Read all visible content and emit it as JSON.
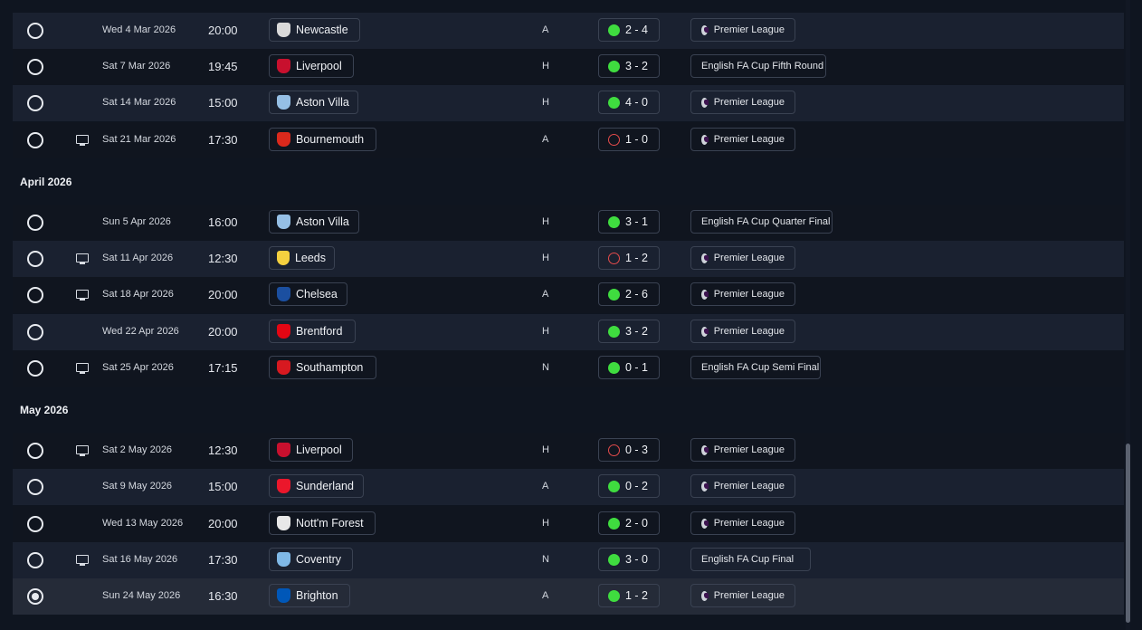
{
  "months": [
    "April 2026",
    "May 2026"
  ],
  "fixtures": [
    {
      "date": "Wed 4 Mar 2026",
      "time": "20:00",
      "opponent": "Newcastle",
      "crest": "newcastle-crest-icon",
      "venue": "A",
      "score": "2 - 4",
      "outcome": "win",
      "competition": "Premier League",
      "tv": false,
      "selected": false
    },
    {
      "date": "Sat 7 Mar 2026",
      "time": "19:45",
      "opponent": "Liverpool",
      "crest": "liverpool-crest-icon",
      "venue": "H",
      "score": "3 - 2",
      "outcome": "win",
      "competition": "English FA Cup Fifth Round",
      "tv": false,
      "selected": false
    },
    {
      "date": "Sat 14 Mar 2026",
      "time": "15:00",
      "opponent": "Aston Villa",
      "crest": "aston-villa-crest-icon",
      "venue": "H",
      "score": "4 - 0",
      "outcome": "win",
      "competition": "Premier League",
      "tv": false,
      "selected": false
    },
    {
      "date": "Sat 21 Mar 2026",
      "time": "17:30",
      "opponent": "Bournemouth",
      "crest": "bournemouth-crest-icon",
      "venue": "A",
      "score": "1 - 0",
      "outcome": "loss",
      "competition": "Premier League",
      "tv": true,
      "selected": false
    },
    {
      "date": "Sun 5 Apr 2026",
      "time": "16:00",
      "opponent": "Aston Villa",
      "crest": "aston-villa-crest-icon",
      "venue": "H",
      "score": "3 - 1",
      "outcome": "win",
      "competition": "English FA Cup Quarter Final",
      "tv": false,
      "selected": false
    },
    {
      "date": "Sat 11 Apr 2026",
      "time": "12:30",
      "opponent": "Leeds",
      "crest": "leeds-crest-icon",
      "venue": "H",
      "score": "1 - 2",
      "outcome": "loss",
      "competition": "Premier League",
      "tv": true,
      "selected": false
    },
    {
      "date": "Sat 18 Apr 2026",
      "time": "20:00",
      "opponent": "Chelsea",
      "crest": "chelsea-crest-icon",
      "venue": "A",
      "score": "2 - 6",
      "outcome": "win",
      "competition": "Premier League",
      "tv": true,
      "selected": false
    },
    {
      "date": "Wed 22 Apr 2026",
      "time": "20:00",
      "opponent": "Brentford",
      "crest": "brentford-crest-icon",
      "venue": "H",
      "score": "3 - 2",
      "outcome": "win",
      "competition": "Premier League",
      "tv": false,
      "selected": false
    },
    {
      "date": "Sat 25 Apr 2026",
      "time": "17:15",
      "opponent": "Southampton",
      "crest": "southampton-crest-icon",
      "venue": "N",
      "score": "0 - 1",
      "outcome": "win",
      "competition": "English FA Cup Semi Final",
      "tv": true,
      "selected": false
    },
    {
      "date": "Sat 2 May 2026",
      "time": "12:30",
      "opponent": "Liverpool",
      "crest": "liverpool-crest-icon",
      "venue": "H",
      "score": "0 - 3",
      "outcome": "loss",
      "competition": "Premier League",
      "tv": true,
      "selected": false
    },
    {
      "date": "Sat 9 May 2026",
      "time": "15:00",
      "opponent": "Sunderland",
      "crest": "sunderland-crest-icon",
      "venue": "A",
      "score": "0 - 2",
      "outcome": "win",
      "competition": "Premier League",
      "tv": false,
      "selected": false
    },
    {
      "date": "Wed 13 May 2026",
      "time": "20:00",
      "opponent": "Nott'm Forest",
      "crest": "nottm-forest-crest-icon",
      "venue": "H",
      "score": "2 - 0",
      "outcome": "win",
      "competition": "Premier League",
      "tv": false,
      "selected": false
    },
    {
      "date": "Sat 16 May 2026",
      "time": "17:30",
      "opponent": "Coventry",
      "crest": "coventry-crest-icon",
      "venue": "N",
      "score": "3 - 0",
      "outcome": "win",
      "competition": "English FA Cup Final",
      "tv": true,
      "selected": false
    },
    {
      "date": "Sun 24 May 2026",
      "time": "16:30",
      "opponent": "Brighton",
      "crest": "brighton-crest-icon",
      "venue": "A",
      "score": "1 - 2",
      "outcome": "win",
      "competition": "Premier League",
      "tv": false,
      "selected": true
    }
  ],
  "crest_colors": {
    "newcastle-crest-icon": "#d9d9d9",
    "liverpool-crest-icon": "#c8102e",
    "aston-villa-crest-icon": "#95bfe5",
    "bournemouth-crest-icon": "#da291c",
    "leeds-crest-icon": "#f4d03f",
    "chelsea-crest-icon": "#1b4fa0",
    "brentford-crest-icon": "#e30613",
    "southampton-crest-icon": "#d71920",
    "sunderland-crest-icon": "#eb172b",
    "nottm-forest-crest-icon": "#e8e8e8",
    "coventry-crest-icon": "#7fb8e6",
    "brighton-crest-icon": "#0057b8"
  }
}
